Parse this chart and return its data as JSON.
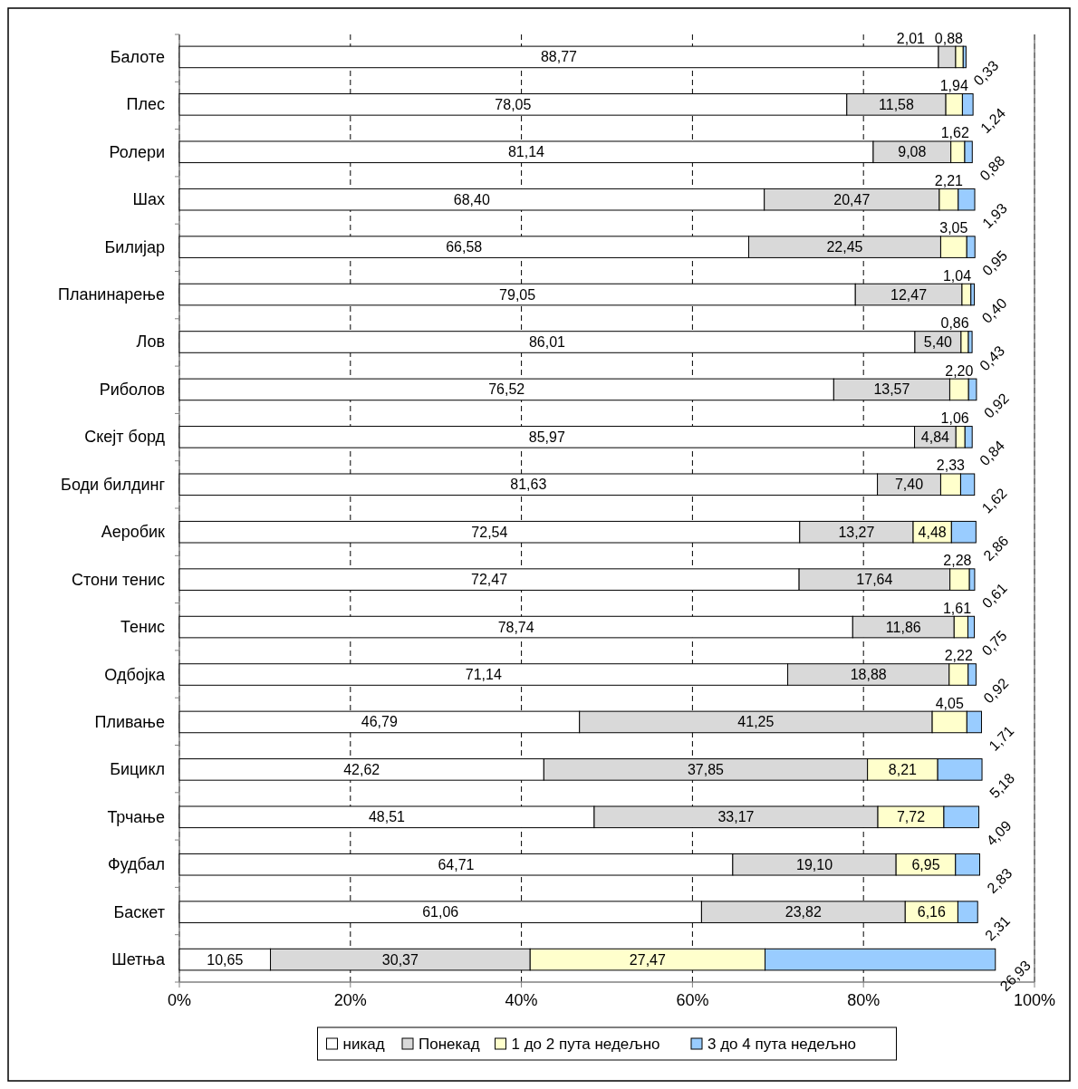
{
  "chart_data": {
    "type": "bar",
    "orientation": "horizontal",
    "stacked": true,
    "grid": "x",
    "legend": "bottom",
    "categories": [
      "Балоте",
      "Плес",
      "Ролери",
      "Шах",
      "Билијар",
      "Планинарење",
      "Лов",
      "Риболов",
      "Скејт борд",
      "Боди билдинг",
      "Аеробик",
      "Стони тенис",
      "Тенис",
      "Одбојка",
      "Пливање",
      "Бицикл",
      "Трчање",
      "Фудбал",
      "Баскет",
      "Шетња"
    ],
    "series": [
      {
        "name": "никад",
        "color": "#ffffff",
        "values": [
          88.77,
          78.05,
          81.14,
          68.4,
          66.58,
          79.05,
          86.01,
          76.52,
          85.97,
          81.63,
          72.54,
          72.47,
          78.74,
          71.14,
          46.79,
          42.62,
          48.51,
          64.71,
          61.06,
          10.65
        ],
        "value_labels": [
          "88,77",
          "78,05",
          "81,14",
          "68,40",
          "66,58",
          "79,05",
          "86,01",
          "76,52",
          "85,97",
          "81,63",
          "72,54",
          "72,47",
          "78,74",
          "71,14",
          "46,79",
          "42,62",
          "48,51",
          "64,71",
          "61,06",
          "10,65"
        ]
      },
      {
        "name": "Понекад",
        "color": "#d9d9d9",
        "values": [
          2.01,
          11.58,
          9.08,
          20.47,
          22.45,
          12.47,
          5.4,
          13.57,
          4.84,
          7.4,
          13.27,
          17.64,
          11.86,
          18.88,
          41.25,
          37.85,
          33.17,
          19.1,
          23.82,
          30.37
        ],
        "value_labels": [
          "2,01",
          "11,58",
          "9,08",
          "20,47",
          "22,45",
          "12,47",
          "5,40",
          "13,57",
          "4,84",
          "7,40",
          "13,27",
          "17,64",
          "11,86",
          "18,88",
          "41,25",
          "37,85",
          "33,17",
          "19,10",
          "23,82",
          "30,37"
        ]
      },
      {
        "name": "1 до 2 пута недељно",
        "color": "#ffffcc",
        "values": [
          0.88,
          1.94,
          1.62,
          2.21,
          3.05,
          1.04,
          0.86,
          2.2,
          1.06,
          2.33,
          4.48,
          2.28,
          1.61,
          2.22,
          4.05,
          8.21,
          7.72,
          6.95,
          6.16,
          27.47
        ],
        "value_labels": [
          "0,88",
          "1,94",
          "1,62",
          "2,21",
          "3,05",
          "1,04",
          "0,86",
          "2,20",
          "1,06",
          "2,33",
          "4,48",
          "2,28",
          "1,61",
          "2,22",
          "4,05",
          "8,21",
          "7,72",
          "6,95",
          "6,16",
          "27,47"
        ]
      },
      {
        "name": "3 до 4 пута недељно",
        "color": "#99ccff",
        "values": [
          0.33,
          1.24,
          0.88,
          1.93,
          0.95,
          0.4,
          0.43,
          0.92,
          0.84,
          1.62,
          2.86,
          0.61,
          0.75,
          0.92,
          1.71,
          5.18,
          4.09,
          2.83,
          2.31,
          26.93
        ],
        "value_labels": [
          "0,33",
          "1,24",
          "0,88",
          "1,93",
          "0,95",
          "0,40",
          "0,43",
          "0,92",
          "0,84",
          "1,62",
          "2,86",
          "0,61",
          "0,75",
          "0,92",
          "1,71",
          "5,18",
          "4,09",
          "2,83",
          "2,31",
          "26,93"
        ]
      }
    ],
    "xlim": [
      0,
      100
    ],
    "xticks": [
      {
        "value": 0,
        "label": "0%"
      },
      {
        "value": 20,
        "label": "20%"
      },
      {
        "value": 40,
        "label": "40%"
      },
      {
        "value": 60,
        "label": "60%"
      },
      {
        "value": 80,
        "label": "80%"
      },
      {
        "value": 100,
        "label": "100%"
      }
    ]
  }
}
